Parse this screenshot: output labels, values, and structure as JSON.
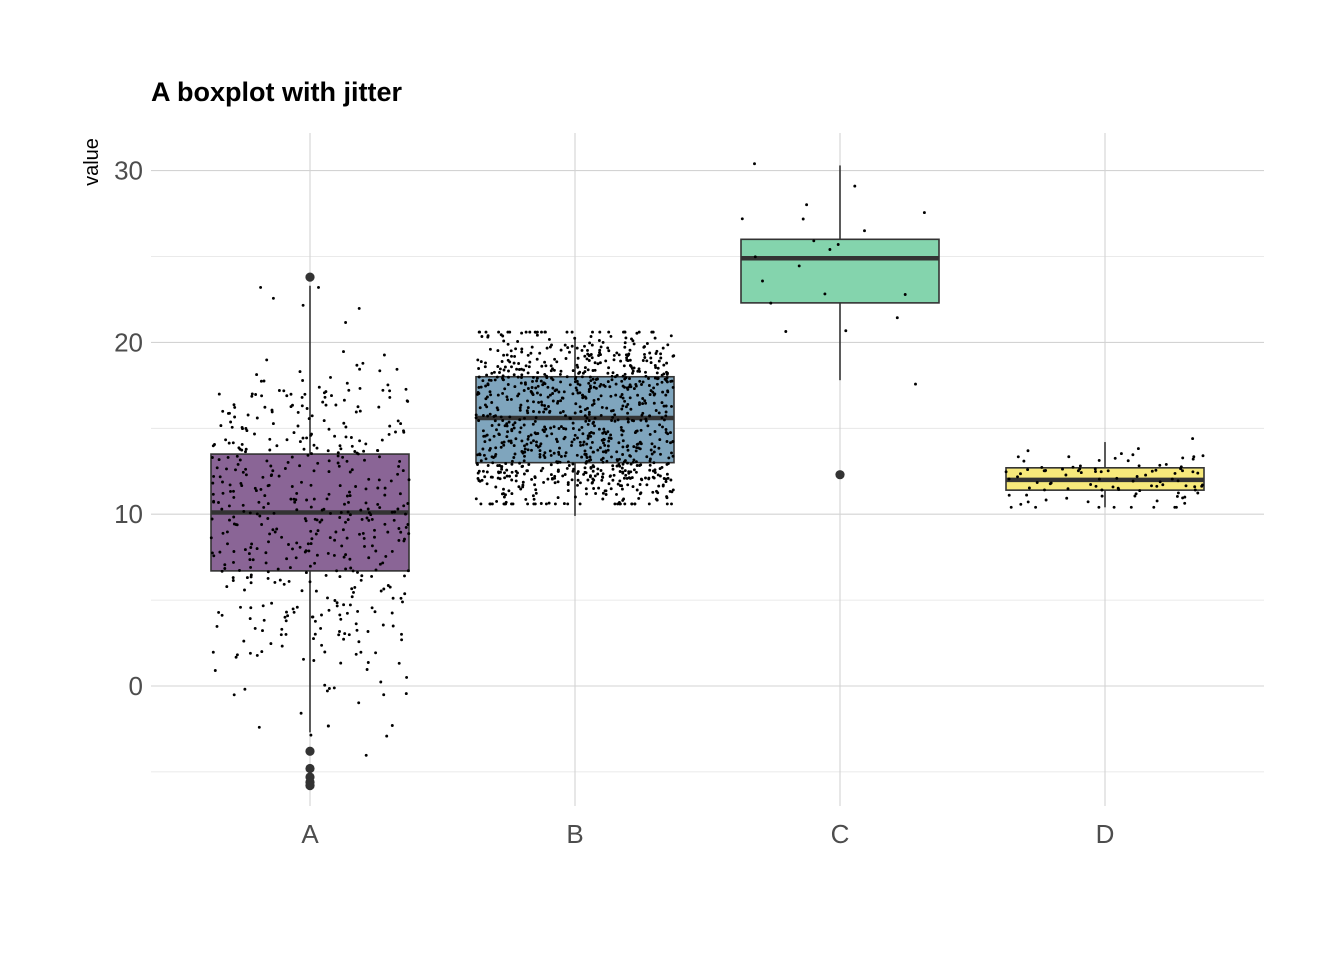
{
  "chart_data": {
    "type": "boxplot",
    "title": "A boxplot with jitter",
    "xlabel": "",
    "ylabel": "value",
    "ylim": [
      -7,
      32.5
    ],
    "y_ticks": [
      0,
      10,
      20,
      30
    ],
    "grid": true,
    "legend": "none",
    "categories": [
      "A",
      "B",
      "C",
      "D"
    ],
    "boxes": [
      {
        "name": "A",
        "n": 500,
        "q1": 6.7,
        "median": 10.1,
        "q3": 13.5,
        "whisker_low": -2.7,
        "whisker_high": 23.3,
        "outliers": [
          23.8,
          -3.8,
          -4.8,
          -5.3,
          -5.6,
          -5.8
        ],
        "color": "#8a6596",
        "jitter_min": -5.5,
        "jitter_max": 23.2
      },
      {
        "name": "B",
        "n": 1000,
        "q1": 13.0,
        "median": 15.6,
        "q3": 18.0,
        "whisker_low": 9.9,
        "whisker_high": 20.3,
        "outliers": [],
        "color": "#7fa5bd",
        "jitter_min": 10.6,
        "jitter_max": 20.6
      },
      {
        "name": "C",
        "n": 20,
        "q1": 22.3,
        "median": 24.9,
        "q3": 26.0,
        "whisker_low": 17.8,
        "whisker_high": 30.3,
        "outliers": [
          12.3
        ],
        "color": "#84d4ad",
        "jitter_min": 12.3,
        "jitter_max": 30.4
      },
      {
        "name": "D",
        "n": 100,
        "q1": 11.4,
        "median": 12.0,
        "q3": 12.7,
        "whisker_low": 10.4,
        "whisker_high": 14.2,
        "outliers": [],
        "color": "#f7e97b",
        "jitter_min": 10.4,
        "jitter_max": 14.4
      }
    ]
  }
}
